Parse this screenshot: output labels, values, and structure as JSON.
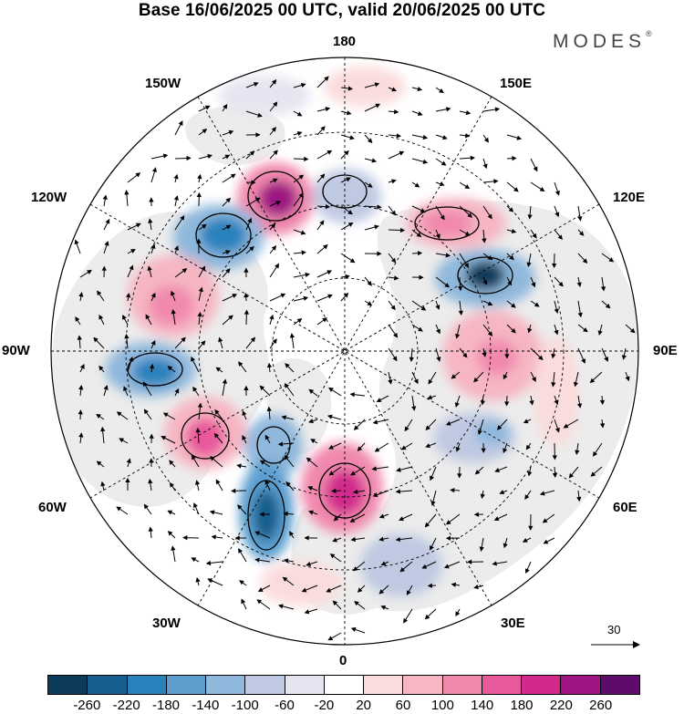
{
  "title": "Base 16/06/2025 00 UTC, valid 20/06/2025 00 UTC",
  "brand": "MODES",
  "brand_mark": "®",
  "longitude_labels": {
    "top": "180",
    "top_left": "150W",
    "top_right": "150E",
    "upper_left": "120W",
    "upper_right": "120E",
    "left": "90W",
    "right": "90E",
    "lower_left": "60W",
    "lower_right": "60E",
    "bottom_left": "30W",
    "bottom_right": "30E",
    "bottom": "0"
  },
  "reference_vector": {
    "value": "30"
  },
  "colorbar": {
    "colors": [
      "#0b3a5a",
      "#165f8e",
      "#2a82bd",
      "#5c9fcf",
      "#8fb8dc",
      "#bfc9e2",
      "#e6e4f0",
      "#ffffff",
      "#fbdcdc",
      "#f6b6c2",
      "#f189ae",
      "#e8599b",
      "#d12a8c",
      "#9e1482",
      "#5d0c6c"
    ],
    "tick_labels": [
      "-260",
      "-220",
      "-180",
      "-140",
      "-100",
      "-60",
      "-20",
      "20",
      "60",
      "100",
      "140",
      "180",
      "220",
      "260"
    ]
  },
  "map_data": {
    "projection": "north polar stereographic",
    "land_color": "#ececec",
    "ocean_color": "#ffffff",
    "anomalies": [
      {
        "name": "pos-alaska-sector",
        "value": 260,
        "sign": "positive"
      },
      {
        "name": "neg-bering",
        "value": -200,
        "sign": "negative"
      },
      {
        "name": "neg-chukchi",
        "value": -100,
        "sign": "negative"
      },
      {
        "name": "pos-east-siberia",
        "value": 140,
        "sign": "positive"
      },
      {
        "name": "neg-yakutia",
        "value": -260,
        "sign": "negative"
      },
      {
        "name": "pos-canada-west",
        "value": 140,
        "sign": "positive"
      },
      {
        "name": "neg-hudson",
        "value": -180,
        "sign": "negative"
      },
      {
        "name": "pos-labrador",
        "value": 180,
        "sign": "positive"
      },
      {
        "name": "neg-greenland-sea",
        "value": -180,
        "sign": "negative"
      },
      {
        "name": "neg-north-atlantic",
        "value": -220,
        "sign": "negative"
      },
      {
        "name": "pos-scandinavia",
        "value": 220,
        "sign": "positive"
      },
      {
        "name": "pos-central-siberia",
        "value": 140,
        "sign": "positive"
      },
      {
        "name": "neg-urals",
        "value": -140,
        "sign": "negative"
      },
      {
        "name": "neg-europe-south",
        "value": -100,
        "sign": "negative"
      }
    ]
  }
}
